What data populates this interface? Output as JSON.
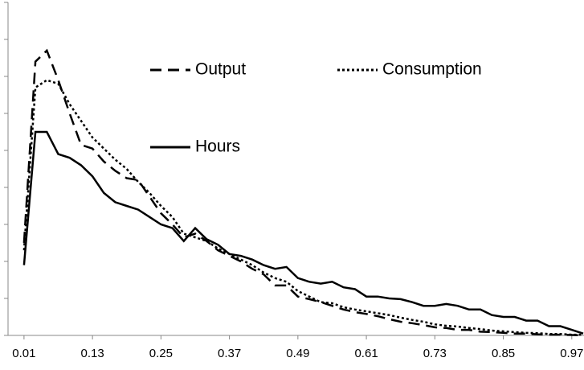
{
  "chart_data": {
    "type": "line",
    "x": [
      0.01,
      0.03,
      0.05,
      0.07,
      0.09,
      0.11,
      0.13,
      0.15,
      0.17,
      0.19,
      0.21,
      0.23,
      0.25,
      0.27,
      0.29,
      0.31,
      0.33,
      0.35,
      0.37,
      0.39,
      0.41,
      0.43,
      0.45,
      0.47,
      0.49,
      0.51,
      0.53,
      0.55,
      0.57,
      0.59,
      0.61,
      0.63,
      0.65,
      0.67,
      0.69,
      0.71,
      0.73,
      0.75,
      0.77,
      0.79,
      0.81,
      0.83,
      0.85,
      0.87,
      0.89,
      0.91,
      0.93,
      0.95,
      0.97,
      0.99
    ],
    "series": [
      {
        "name": "Output",
        "color": "#000000",
        "dash": "dashed",
        "values": [
          2.5,
          7.4,
          7.7,
          6.9,
          6.0,
          5.15,
          5.05,
          4.7,
          4.45,
          4.25,
          4.2,
          3.75,
          3.3,
          3.0,
          2.65,
          2.75,
          2.55,
          2.3,
          2.15,
          2.0,
          1.8,
          1.65,
          1.35,
          1.35,
          1.05,
          0.98,
          0.9,
          0.8,
          0.7,
          0.63,
          0.58,
          0.52,
          0.44,
          0.37,
          0.33,
          0.28,
          0.22,
          0.2,
          0.15,
          0.15,
          0.1,
          0.09,
          0.07,
          0.05,
          0.05,
          0.03,
          0.02,
          0.02,
          0.01,
          0
        ]
      },
      {
        "name": "Consumption",
        "color": "#000000",
        "dash": "dotted",
        "values": [
          2.3,
          6.7,
          6.9,
          6.8,
          6.25,
          5.8,
          5.35,
          5.05,
          4.75,
          4.5,
          4.15,
          3.85,
          3.5,
          3.2,
          2.75,
          2.65,
          2.55,
          2.35,
          2.2,
          2.05,
          1.9,
          1.7,
          1.55,
          1.45,
          1.2,
          1.05,
          0.9,
          0.87,
          0.76,
          0.7,
          0.65,
          0.6,
          0.55,
          0.48,
          0.42,
          0.37,
          0.3,
          0.26,
          0.24,
          0.2,
          0.17,
          0.13,
          0.11,
          0.09,
          0.07,
          0.06,
          0.04,
          0.04,
          0.02,
          0.02
        ]
      },
      {
        "name": "Hours",
        "color": "#000000",
        "dash": "solid",
        "values": [
          1.9,
          5.5,
          5.5,
          4.9,
          4.8,
          4.6,
          4.3,
          3.85,
          3.6,
          3.5,
          3.4,
          3.2,
          3.0,
          2.9,
          2.55,
          2.9,
          2.6,
          2.45,
          2.2,
          2.15,
          2.05,
          1.9,
          1.8,
          1.85,
          1.55,
          1.45,
          1.4,
          1.45,
          1.3,
          1.25,
          1.05,
          1.05,
          1.0,
          0.98,
          0.9,
          0.8,
          0.8,
          0.85,
          0.8,
          0.7,
          0.7,
          0.55,
          0.5,
          0.5,
          0.4,
          0.4,
          0.25,
          0.25,
          0.15,
          0.05
        ]
      }
    ],
    "xlim": [
      -0.018,
      0.99
    ],
    "xticks": [
      0.01,
      0.13,
      0.25,
      0.37,
      0.49,
      0.61,
      0.73,
      0.85,
      0.97
    ],
    "ylim": [
      0,
      9
    ],
    "yticks": [
      0,
      1,
      2,
      3,
      4,
      5,
      6,
      7,
      8,
      9
    ],
    "grid": false
  }
}
